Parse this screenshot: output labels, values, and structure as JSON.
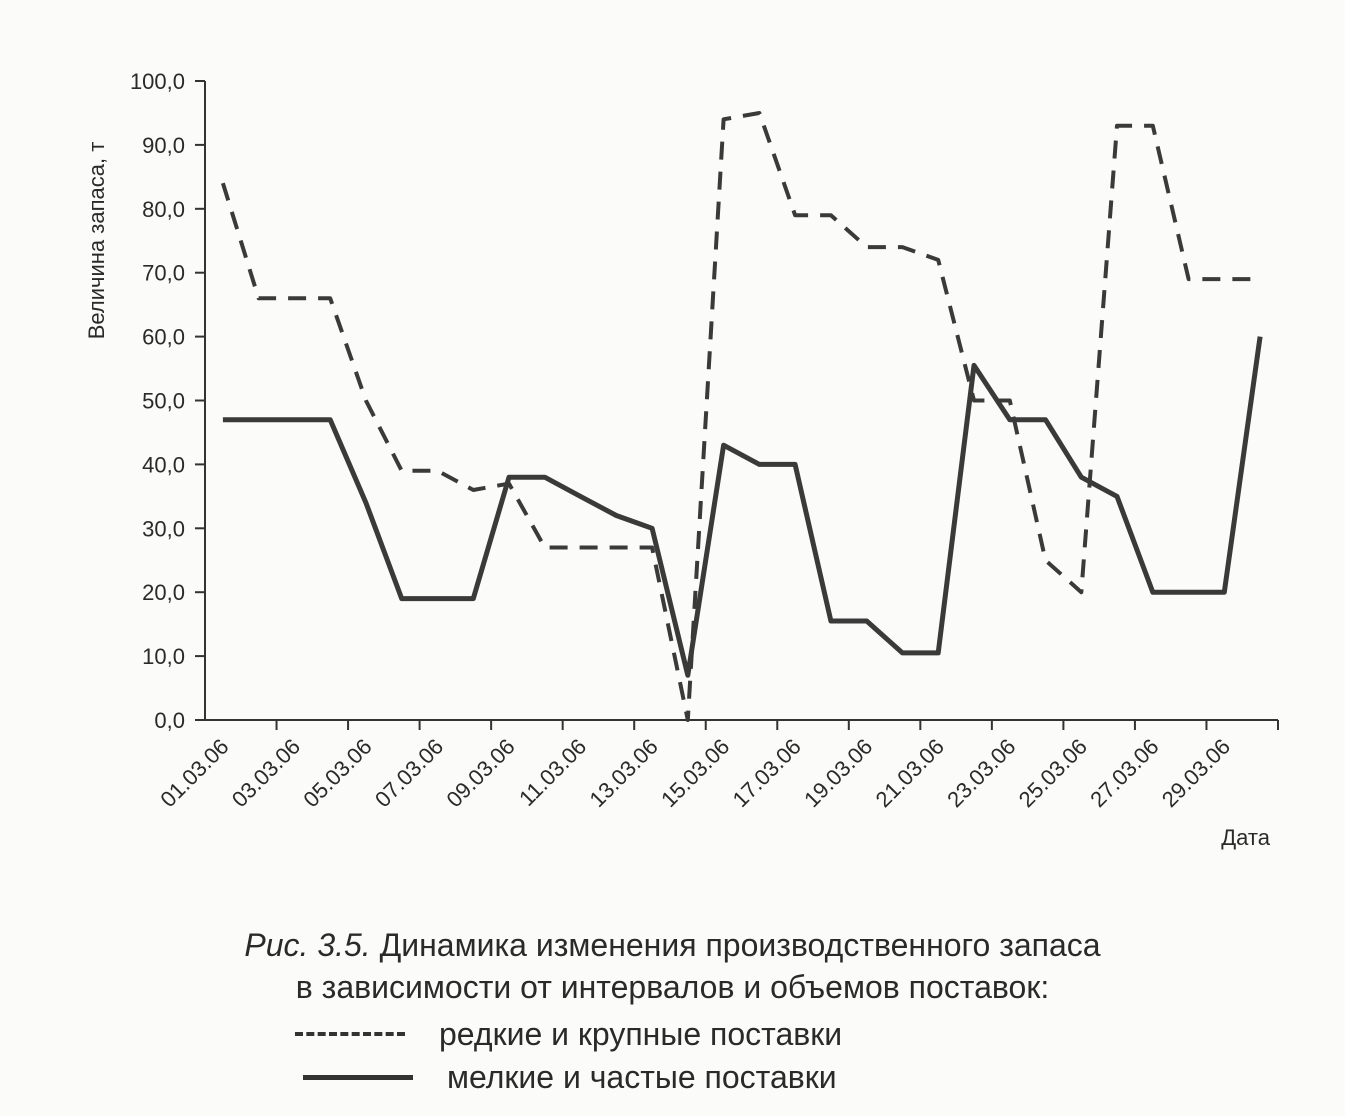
{
  "chart_data": {
    "type": "line",
    "xlabel": "Дата",
    "ylabel": "Величина запаса, т",
    "ylim": [
      0,
      100
    ],
    "yticks": [
      "0,0",
      "10,0",
      "20,0",
      "30,0",
      "40,0",
      "50,0",
      "60,0",
      "70,0",
      "80,0",
      "90,0",
      "100,0"
    ],
    "xticks": [
      "01.03.06",
      "03.03.06",
      "05.03.06",
      "07.03.06",
      "09.03.06",
      "11.03.06",
      "13.03.06",
      "15.03.06",
      "17.03.06",
      "19.03.06",
      "21.03.06",
      "23.03.06",
      "25.03.06",
      "27.03.06",
      "29.03.06"
    ],
    "dates": [
      "01.03.06",
      "02.03.06",
      "03.03.06",
      "04.03.06",
      "05.03.06",
      "06.03.06",
      "07.03.06",
      "08.03.06",
      "09.03.06",
      "10.03.06",
      "11.03.06",
      "12.03.06",
      "13.03.06",
      "14.03.06",
      "15.03.06",
      "16.03.06",
      "17.03.06",
      "18.03.06",
      "19.03.06",
      "20.03.06",
      "21.03.06",
      "22.03.06",
      "23.03.06",
      "24.03.06",
      "25.03.06",
      "26.03.06",
      "27.03.06",
      "28.03.06",
      "29.03.06",
      "30.03.06"
    ],
    "series": [
      {
        "name": "редкие и крупные поставки",
        "style": "dashed",
        "values": [
          84,
          66,
          66,
          66,
          50,
          39,
          39,
          36,
          37,
          27,
          27,
          27,
          27,
          0,
          94,
          95,
          79,
          79,
          74,
          74,
          72,
          50,
          50,
          25,
          20,
          93,
          93,
          69,
          69,
          69
        ]
      },
      {
        "name": "мелкие и частые поставки",
        "style": "solid",
        "values": [
          47,
          47,
          47,
          47,
          34,
          19,
          19,
          19,
          38,
          38,
          35,
          32,
          30,
          7,
          43,
          40,
          40,
          15.5,
          15.5,
          10.5,
          10.5,
          55.5,
          47,
          47,
          38,
          35,
          20,
          20,
          20,
          60
        ]
      }
    ],
    "grid": false
  },
  "caption": {
    "fig_num": "Рис. 3.5.",
    "line1": "Динамика изменения производственного запаса",
    "line2": "в зависимости от интервалов и объемов поставок:",
    "legend_dashed": "редкие и крупные поставки",
    "legend_solid": "мелкие и частые поставки"
  }
}
